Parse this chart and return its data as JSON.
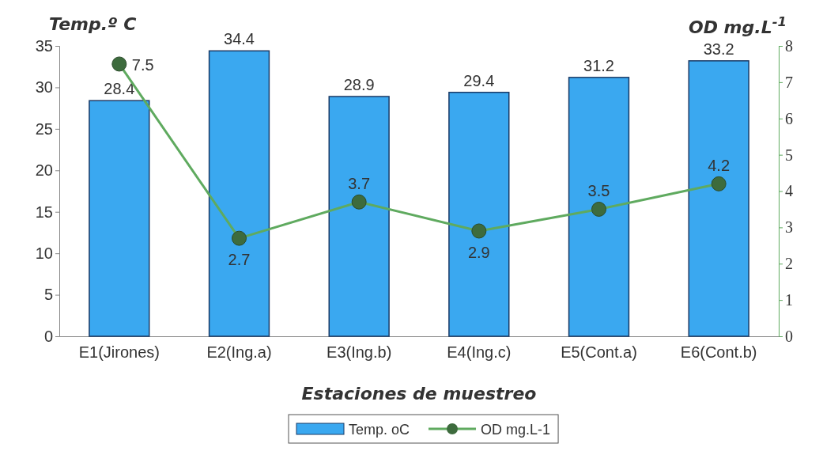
{
  "chart_data": {
    "type": "bar",
    "xlabel": "Estaciones de muestreo",
    "ylabel": "Temp.º C",
    "y2label": "OD mg.L$^{-1}$",
    "categories": [
      "E1(Jirones)",
      "E2(Ing.a)",
      "E3(Ing.b)",
      "E4(Ing.c)",
      "E5(Cont.a)",
      "E6(Cont.b)"
    ],
    "series": [
      {
        "name": "Temp. oC",
        "color": "#3aa8f0",
        "values": [
          28.4,
          34.4,
          28.9,
          29.4,
          31.2,
          33.2
        ]
      },
      {
        "name": "OD mg.L-1",
        "type": "line",
        "axis": "y2",
        "color": "#5faa5f",
        "marker": "circle",
        "values": [
          7.5,
          2.7,
          3.7,
          2.9,
          3.5,
          4.2
        ]
      }
    ],
    "ylim": [
      0,
      35
    ],
    "yticks": [
      0,
      5,
      10,
      15,
      20,
      25,
      30,
      35
    ],
    "y2lim": [
      0,
      8
    ],
    "y2ticks": [
      0,
      1,
      2,
      3,
      4,
      5,
      6,
      7,
      8
    ],
    "data_labels": true,
    "grid": false,
    "legend": "bottom"
  }
}
